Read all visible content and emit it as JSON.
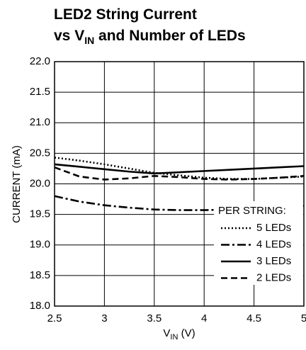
{
  "chart_data": {
    "type": "line",
    "title": {
      "line1": "LED2 String Current",
      "line2": [
        "vs V",
        "IN",
        " and Number of LEDs"
      ]
    },
    "xlabel": [
      "V",
      "IN",
      " (V)"
    ],
    "ylabel": "CURRENT (mA)",
    "x": [
      2.5,
      2.75,
      3,
      3.25,
      3.5,
      3.75,
      4,
      4.25,
      4.5,
      4.75,
      5
    ],
    "series": [
      {
        "name": "5 LEDs",
        "color": "#000000",
        "dash": "dotted",
        "values": [
          20.43,
          20.38,
          20.32,
          20.25,
          20.18,
          20.14,
          20.1,
          20.08,
          20.08,
          20.1,
          20.12
        ]
      },
      {
        "name": "4 LEDs",
        "color": "#000000",
        "dash": "dashdot",
        "values": [
          19.8,
          19.71,
          19.65,
          19.61,
          19.58,
          19.57,
          19.57,
          19.58,
          19.59,
          19.61,
          19.64
        ]
      },
      {
        "name": "3 LEDs",
        "color": "#000000",
        "dash": "solid",
        "values": [
          20.32,
          20.28,
          20.24,
          20.2,
          20.17,
          20.19,
          20.21,
          20.23,
          20.25,
          20.27,
          20.29
        ]
      },
      {
        "name": "2 LEDs",
        "color": "#000000",
        "dash": "dashed",
        "values": [
          20.27,
          20.12,
          20.07,
          20.09,
          20.13,
          20.11,
          20.08,
          20.07,
          20.08,
          20.1,
          20.13
        ]
      }
    ],
    "legend_title": "PER STRING:",
    "legend": "lower right",
    "xlim": [
      2.5,
      5
    ],
    "xticks": [
      2.5,
      3,
      3.5,
      4,
      4.5,
      5
    ],
    "ylim": [
      18,
      22
    ],
    "yticks": [
      {
        "value": 18,
        "label": "18.0"
      },
      18.5,
      {
        "value": 19,
        "label": "19.0"
      },
      19.5,
      {
        "value": 20,
        "label": "20.0"
      },
      20.5,
      {
        "value": 21,
        "label": "21.0"
      },
      21.5,
      {
        "value": 22,
        "label": "22.0"
      }
    ],
    "grid": true
  }
}
